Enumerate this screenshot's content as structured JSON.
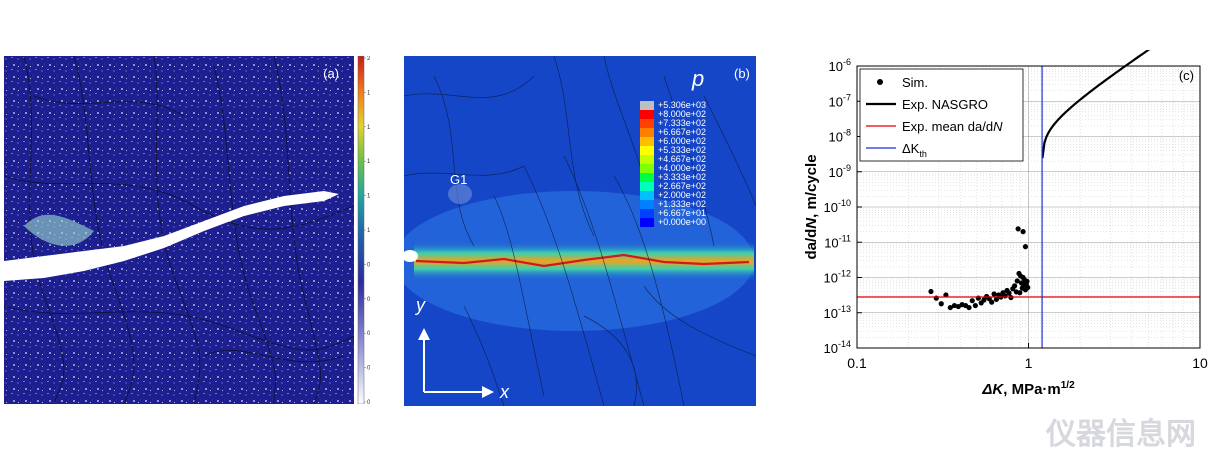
{
  "panel_a": {
    "label": "(a)",
    "colorbar_ticks": [
      "2",
      "1.8",
      "1.6",
      "1.4",
      "1.2",
      "1",
      "0.8",
      "0.6",
      "0.4",
      "0.2",
      "0"
    ]
  },
  "panel_b": {
    "label": "(b)",
    "variable": "p",
    "grain_label": "G1",
    "axis_y": "y",
    "axis_x": "x",
    "legend_values": [
      "+5.306e+03",
      "+8.000e+02",
      "+7.333e+02",
      "+6.667e+02",
      "+6.000e+02",
      "+5.333e+02",
      "+4.667e+02",
      "+4.000e+02",
      "+3.333e+02",
      "+2.667e+02",
      "+2.000e+02",
      "+1.333e+02",
      "+6.667e+01",
      "+0.000e+00"
    ],
    "legend_colors": [
      "#bfbfbf",
      "#ff0000",
      "#ff4000",
      "#ff7f00",
      "#ffbf00",
      "#ffff00",
      "#bfff00",
      "#7fff00",
      "#00ff40",
      "#00ffbf",
      "#00bfff",
      "#007fff",
      "#0040ff",
      "#0000ff"
    ]
  },
  "chart_data": {
    "type": "scatter",
    "panel_label": "(c)",
    "x_scale": "log",
    "y_scale": "log",
    "xlim": [
      0.1,
      10
    ],
    "ylim": [
      1e-14,
      1e-06
    ],
    "x_ticks": [
      {
        "value": 0.1,
        "label": "0.1"
      },
      {
        "value": 1,
        "label": "1"
      },
      {
        "value": 10,
        "label": "10"
      }
    ],
    "y_ticks": [
      {
        "value": 1e-14,
        "exp": "-14"
      },
      {
        "value": 1e-13,
        "exp": "-13"
      },
      {
        "value": 1e-12,
        "exp": "-12"
      },
      {
        "value": 1e-11,
        "exp": "-11"
      },
      {
        "value": 1e-10,
        "exp": "-10"
      },
      {
        "value": 1e-09,
        "exp": "-9"
      },
      {
        "value": 1e-08,
        "exp": "-8"
      },
      {
        "value": 1e-07,
        "exp": "-7"
      },
      {
        "value": 1e-06,
        "exp": "-6"
      }
    ],
    "xlabel": {
      "sym": "ΔK",
      "rest": ", MPa·m",
      "sup": "1/2"
    },
    "ylabel": {
      "a": "da/d",
      "b": "N",
      "c": ", m/cycle"
    },
    "grid": true,
    "legend_position": "top-left",
    "legend": [
      {
        "label": "Sim.",
        "marker": "dot",
        "color": "#000000"
      },
      {
        "label": "Exp. NASGRO",
        "marker": "line",
        "color": "#000000"
      },
      {
        "label_a": "Exp. mean da/d",
        "label_b": "N",
        "marker": "line",
        "color": "#e00000"
      },
      {
        "label_a": "ΔK",
        "label_sub": "th",
        "marker": "line",
        "color": "#1c2fd8"
      }
    ],
    "series": [
      {
        "name": "Sim.",
        "color": "#000000",
        "points": [
          [
            0.27,
            4e-13
          ],
          [
            0.29,
            2.6e-13
          ],
          [
            0.31,
            1.8e-13
          ],
          [
            0.33,
            3.2e-13
          ],
          [
            0.35,
            1.4e-13
          ],
          [
            0.37,
            1.6e-13
          ],
          [
            0.39,
            1.5e-13
          ],
          [
            0.41,
            1.7e-13
          ],
          [
            0.43,
            1.6e-13
          ],
          [
            0.45,
            1.4e-13
          ],
          [
            0.47,
            2.2e-13
          ],
          [
            0.49,
            1.6e-13
          ],
          [
            0.51,
            2.6e-13
          ],
          [
            0.53,
            1.9e-13
          ],
          [
            0.55,
            2.3e-13
          ],
          [
            0.57,
            2.9e-13
          ],
          [
            0.59,
            2.5e-13
          ],
          [
            0.61,
            2e-13
          ],
          [
            0.63,
            3.4e-13
          ],
          [
            0.65,
            2.4e-13
          ],
          [
            0.67,
            3.2e-13
          ],
          [
            0.69,
            2.8e-13
          ],
          [
            0.71,
            3.7e-13
          ],
          [
            0.73,
            3e-13
          ],
          [
            0.75,
            4.3e-13
          ],
          [
            0.77,
            3.6e-13
          ],
          [
            0.79,
            2.7e-13
          ],
          [
            0.81,
            4.8e-13
          ],
          [
            0.83,
            5.8e-13
          ],
          [
            0.85,
            3.9e-13
          ],
          [
            0.86,
            8e-13
          ],
          [
            0.88,
            1.3e-12
          ],
          [
            0.89,
            3.7e-13
          ],
          [
            0.9,
            1.1e-12
          ],
          [
            0.91,
            7e-13
          ],
          [
            0.92,
            5e-13
          ],
          [
            0.93,
            1e-12
          ],
          [
            0.94,
            6e-13
          ],
          [
            0.95,
            8.5e-13
          ],
          [
            0.96,
            4.5e-13
          ],
          [
            0.97,
            6.5e-13
          ],
          [
            0.98,
            7.8e-13
          ],
          [
            0.99,
            5.2e-13
          ],
          [
            0.87,
            2.4e-11
          ],
          [
            0.93,
            2e-11
          ],
          [
            0.96,
            7.5e-12
          ]
        ]
      },
      {
        "name": "Exp. NASGRO",
        "color": "#000000",
        "curve": {
          "dKth": 1.2,
          "C": 1.9e-08,
          "m": 3.2,
          "p": 0.5,
          "x_end": 10
        }
      },
      {
        "name": "Exp. mean da/dN",
        "color": "#e00000",
        "y": 2.8e-13
      },
      {
        "name": "ΔKth",
        "color": "#1c2fd8",
        "x": 1.2
      }
    ]
  },
  "watermark": "仪器信息网"
}
